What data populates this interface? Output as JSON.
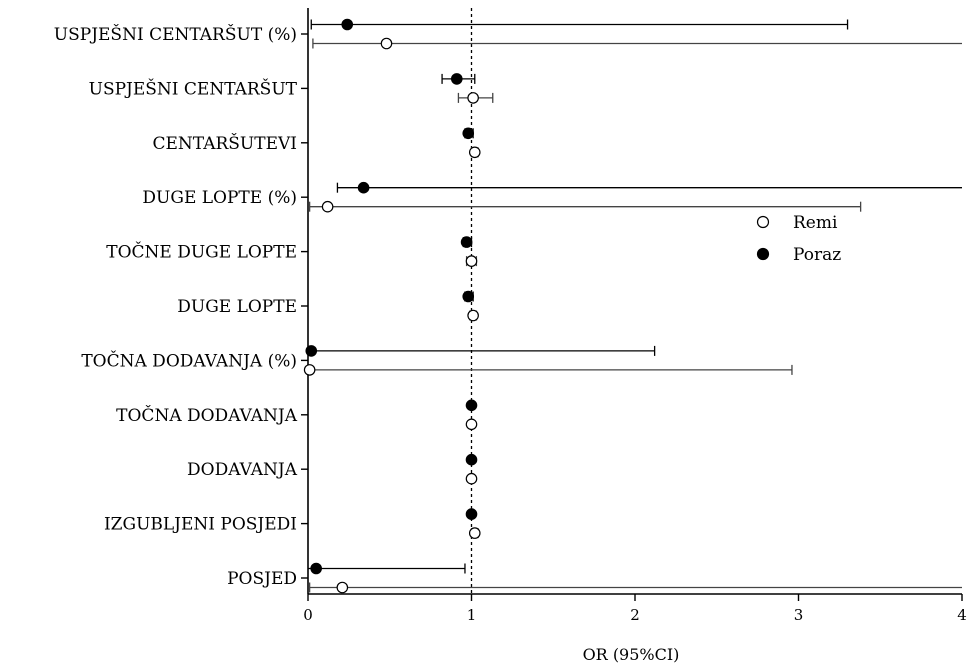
{
  "chart_data": {
    "type": "forest",
    "xlabel": "OR (95%CI)",
    "xlim": [
      0,
      4
    ],
    "xticks": [
      "0",
      "1",
      "2",
      "3",
      "4"
    ],
    "reference_line": 1,
    "legend_position": "right",
    "categories": [
      "USPJEŠNI CENTARŠUT (%)",
      "USPJEŠNI CENTARŠUT",
      "CENTARŠUTEVI",
      "DUGE LOPTE (%)",
      "TOČNE DUGE LOPTE",
      "DUGE LOPTE",
      "TOČNA DODAVANJA (%)",
      "TOČNA DODAVANJA",
      "DODAVANJA",
      "IZGUBLJENI POSJEDI",
      "POSJED"
    ],
    "series": [
      {
        "name": "Poraz",
        "marker": "filled-circle",
        "color": "#000000",
        "or": [
          0.24,
          0.91,
          0.98,
          0.34,
          0.97,
          0.98,
          0.02,
          1.0,
          1.0,
          1.0,
          0.05
        ],
        "lower": [
          0.02,
          0.82,
          0.96,
          0.18,
          0.95,
          0.96,
          0.0,
          0.99,
          0.99,
          0.99,
          0.0
        ],
        "upper": [
          3.3,
          1.02,
          1.01,
          4.0,
          1.0,
          1.01,
          2.12,
          1.01,
          1.01,
          1.01,
          0.96
        ]
      },
      {
        "name": "Remi",
        "marker": "open-circle",
        "color": "#000000",
        "or": [
          0.48,
          1.01,
          1.02,
          0.12,
          1.0,
          1.01,
          0.01,
          1.0,
          1.0,
          1.02,
          0.21
        ],
        "lower": [
          0.03,
          0.92,
          1.0,
          0.01,
          0.97,
          0.99,
          0.0,
          0.99,
          0.99,
          1.0,
          0.01
        ],
        "upper": [
          4.0,
          1.13,
          1.04,
          3.38,
          1.03,
          1.03,
          2.96,
          1.01,
          1.01,
          1.04,
          4.0
        ]
      }
    ]
  }
}
